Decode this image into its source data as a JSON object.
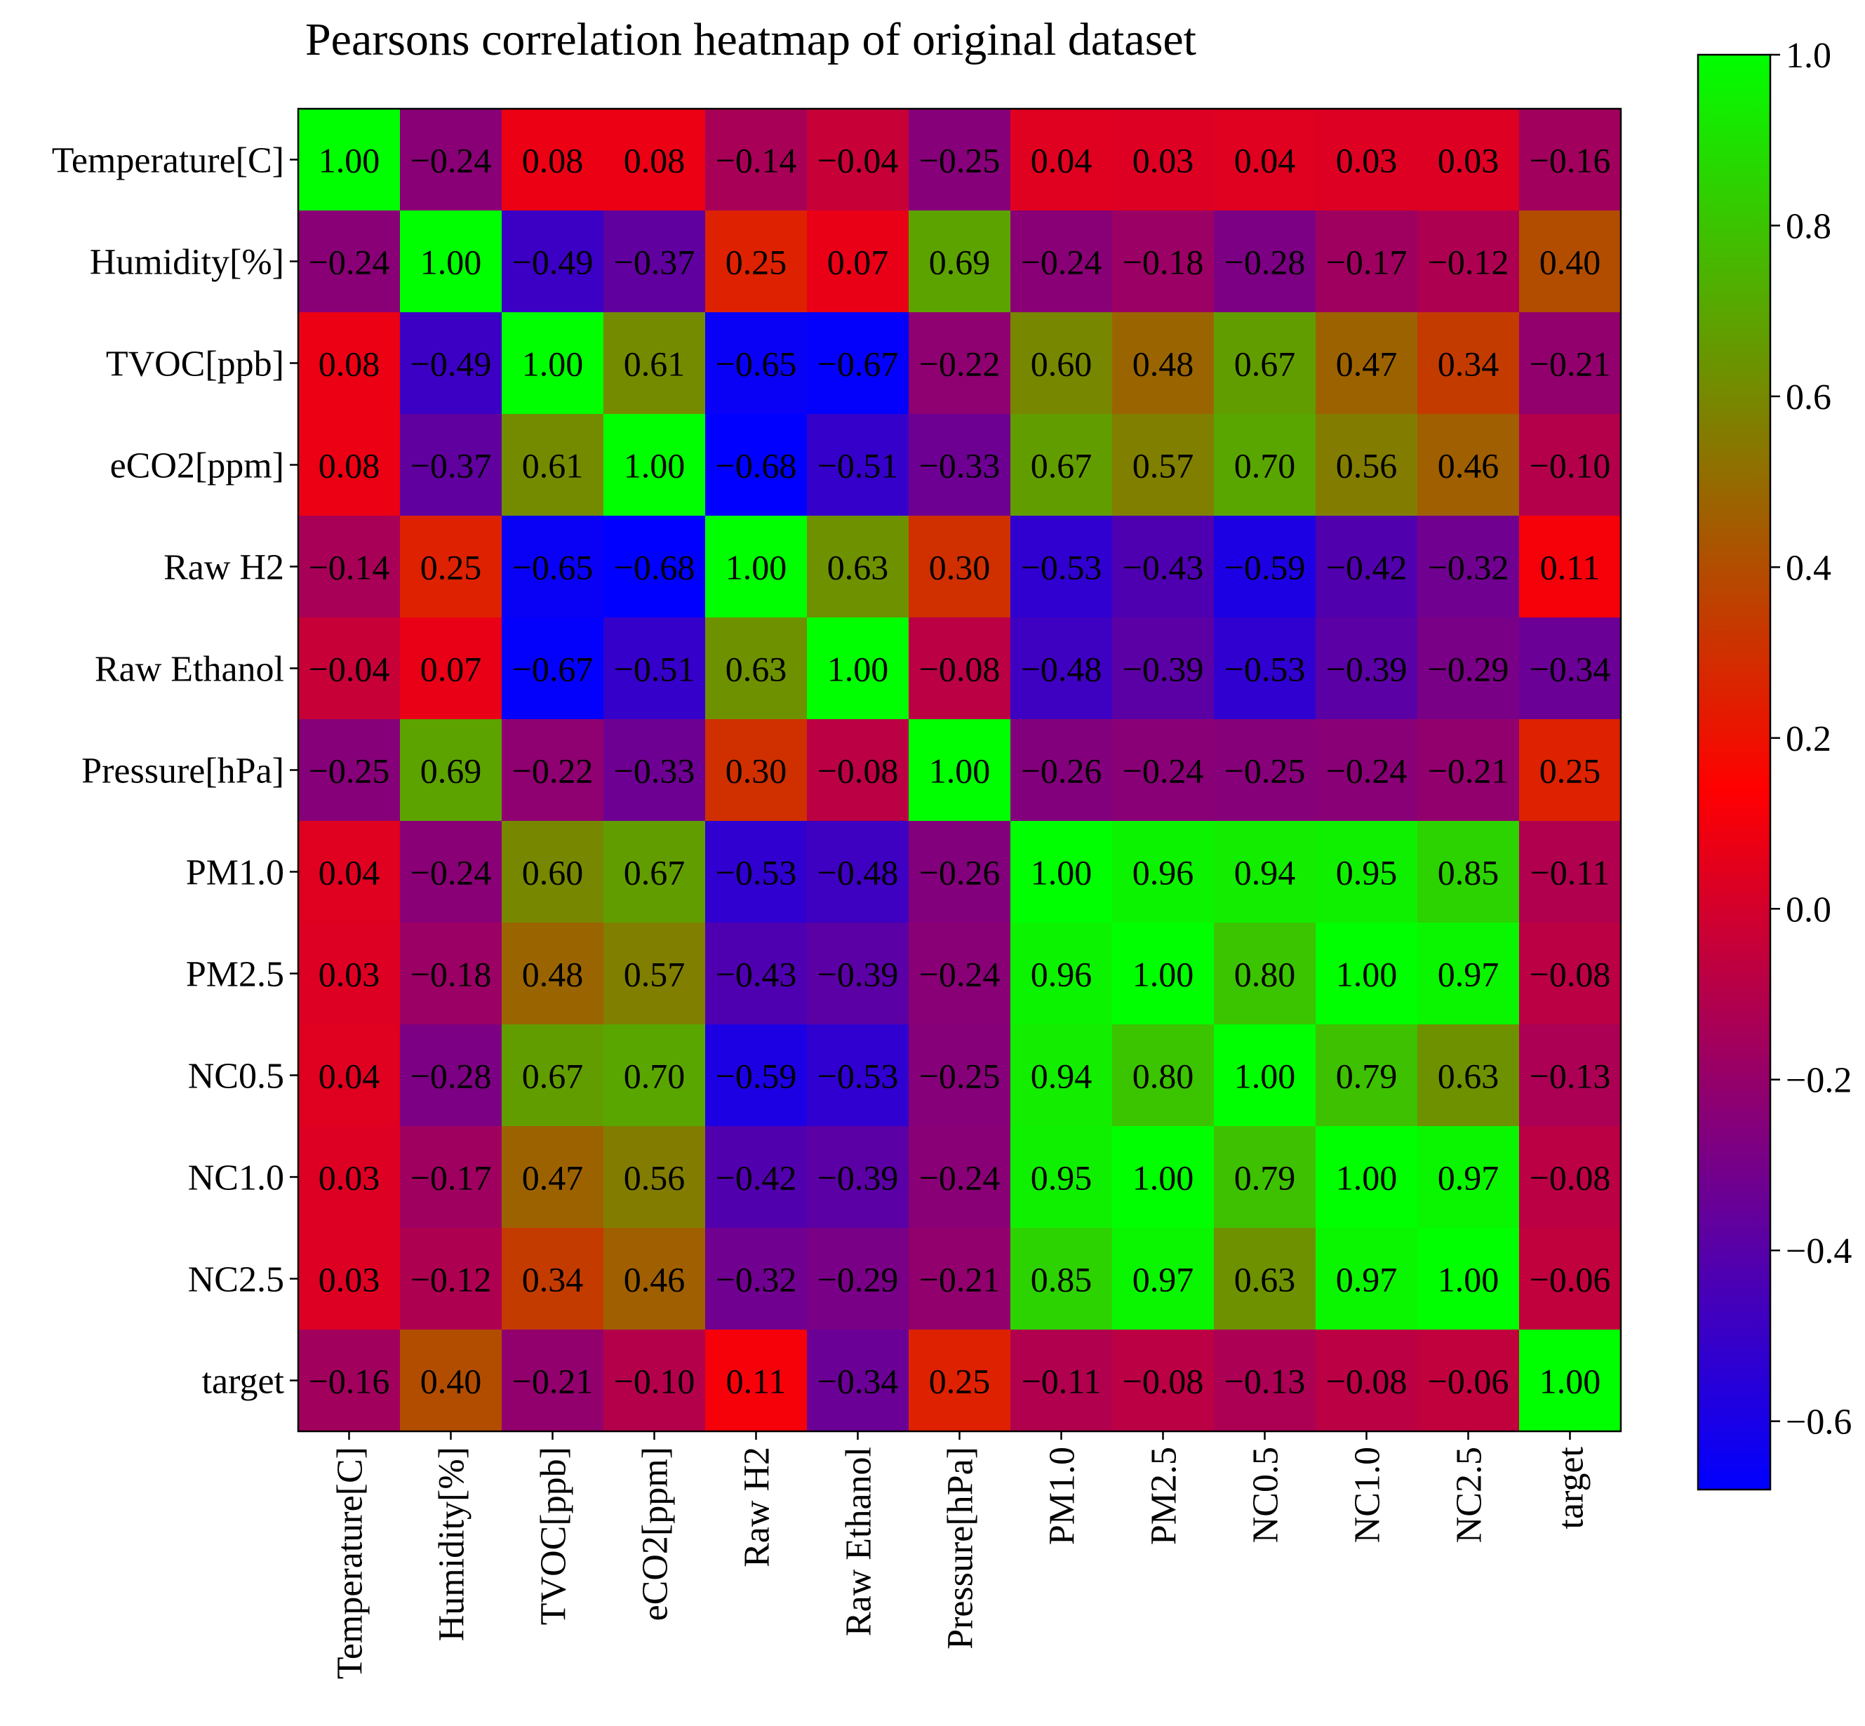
{
  "chart_data": {
    "type": "heatmap",
    "title": "Pearsons correlation heatmap of original dataset",
    "rows": [
      "Temperature[C]",
      "Humidity[%]",
      "TVOC[ppb]",
      "eCO2[ppm]",
      "Raw H2",
      "Raw Ethanol",
      "Pressure[hPa]",
      "PM1.0",
      "PM2.5",
      "NC0.5",
      "NC1.0",
      "NC2.5",
      "target"
    ],
    "columns": [
      "Temperature[C]",
      "Humidity[%]",
      "TVOC[ppb]",
      "eCO2[ppm]",
      "Raw H2",
      "Raw Ethanol",
      "Pressure[hPa]",
      "PM1.0",
      "PM2.5",
      "NC0.5",
      "NC1.0",
      "NC2.5",
      "target"
    ],
    "values": [
      [
        1.0,
        -0.24,
        0.08,
        0.08,
        -0.14,
        -0.04,
        -0.25,
        0.04,
        0.03,
        0.04,
        0.03,
        0.03,
        -0.16
      ],
      [
        -0.24,
        1.0,
        -0.49,
        -0.37,
        0.25,
        0.07,
        0.69,
        -0.24,
        -0.18,
        -0.28,
        -0.17,
        -0.12,
        0.4
      ],
      [
        0.08,
        -0.49,
        1.0,
        0.61,
        -0.65,
        -0.67,
        -0.22,
        0.6,
        0.48,
        0.67,
        0.47,
        0.34,
        -0.21
      ],
      [
        0.08,
        -0.37,
        0.61,
        1.0,
        -0.68,
        -0.51,
        -0.33,
        0.67,
        0.57,
        0.7,
        0.56,
        0.46,
        -0.1
      ],
      [
        -0.14,
        0.25,
        -0.65,
        -0.68,
        1.0,
        0.63,
        0.3,
        -0.53,
        -0.43,
        -0.59,
        -0.42,
        -0.32,
        0.11
      ],
      [
        -0.04,
        0.07,
        -0.67,
        -0.51,
        0.63,
        1.0,
        -0.08,
        -0.48,
        -0.39,
        -0.53,
        -0.39,
        -0.29,
        -0.34
      ],
      [
        -0.25,
        0.69,
        -0.22,
        -0.33,
        0.3,
        -0.08,
        1.0,
        -0.26,
        -0.24,
        -0.25,
        -0.24,
        -0.21,
        0.25
      ],
      [
        0.04,
        -0.24,
        0.6,
        0.67,
        -0.53,
        -0.48,
        -0.26,
        1.0,
        0.96,
        0.94,
        0.95,
        0.85,
        -0.11
      ],
      [
        0.03,
        -0.18,
        0.48,
        0.57,
        -0.43,
        -0.39,
        -0.24,
        0.96,
        1.0,
        0.8,
        1.0,
        0.97,
        -0.08
      ],
      [
        0.04,
        -0.28,
        0.67,
        0.7,
        -0.59,
        -0.53,
        -0.25,
        0.94,
        0.8,
        1.0,
        0.79,
        0.63,
        -0.13
      ],
      [
        0.03,
        -0.17,
        0.47,
        0.56,
        -0.42,
        -0.39,
        -0.24,
        0.95,
        1.0,
        0.79,
        1.0,
        0.97,
        -0.08
      ],
      [
        0.03,
        -0.12,
        0.34,
        0.46,
        -0.32,
        -0.29,
        -0.21,
        0.85,
        0.97,
        0.63,
        0.97,
        1.0,
        -0.06
      ],
      [
        -0.16,
        0.4,
        -0.21,
        -0.1,
        0.11,
        -0.34,
        0.25,
        -0.11,
        -0.08,
        -0.13,
        -0.08,
        -0.06,
        1.0
      ]
    ],
    "colorbar": {
      "range": [
        -0.68,
        1.0
      ],
      "ticks": [
        "1.0",
        "0.8",
        "0.6",
        "0.4",
        "0.2",
        "0.0",
        "−0.2",
        "−0.4",
        "−0.6"
      ],
      "tick_values": [
        1.0,
        0.8,
        0.6,
        0.4,
        0.2,
        0.0,
        -0.2,
        -0.4,
        -0.6
      ],
      "stops": [
        {
          "value": -0.68,
          "color": "#0000ff"
        },
        {
          "value": 0.14,
          "color": "#ff0000"
        },
        {
          "value": 1.0,
          "color": "#00ff00"
        }
      ]
    },
    "value_format": "2 decimals, unicode minus"
  }
}
